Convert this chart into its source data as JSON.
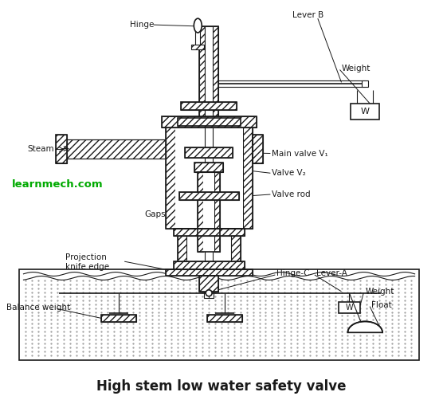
{
  "title": "High stem low water safety valve",
  "title_fontsize": 12,
  "background_color": "#ffffff",
  "labels": {
    "hinge": "Hinge",
    "lever_b": "Lever B",
    "weight_top": "Weight",
    "steam": "Steam",
    "main_valve": "Main valve V₁",
    "valve_v2": "Valve V₂",
    "valve_rod": "Valve rod",
    "gaps": "Gaps",
    "projection": "Projection\nknife edge",
    "hinge_c": "Hinge-C",
    "lever_a": "Lever-A",
    "balance_weight": "Balance weight",
    "weight_bottom": "Weight",
    "float_label": "Float",
    "watermark": "learnmech.com"
  },
  "line_color": "#1a1a1a",
  "watermark_color": "#00aa00"
}
